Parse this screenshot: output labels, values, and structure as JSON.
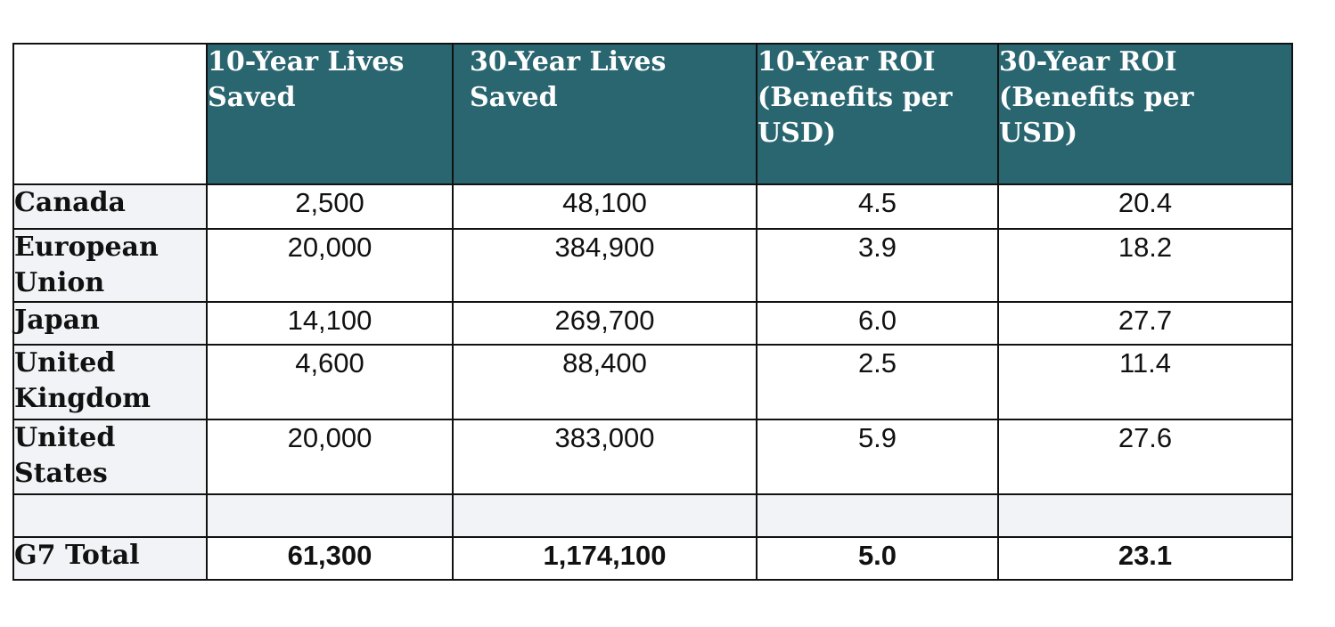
{
  "headers": [
    "10-Year Lives Saved",
    "30-Year Lives Saved",
    "10-Year ROI (Benefits per USD)",
    "30-Year ROI (Benefits per USD)"
  ],
  "rows": [
    {
      "label": "Canada",
      "values": [
        "2,500",
        "48,100",
        "4.5",
        "20.4"
      ]
    },
    {
      "label": "European Union",
      "values": [
        "20,000",
        "384,900",
        "3.9",
        "18.2"
      ]
    },
    {
      "label": "Japan",
      "values": [
        "14,100",
        "269,700",
        "6.0",
        "27.7"
      ]
    },
    {
      "label": "United Kingdom",
      "values": [
        "4,600",
        "88,400",
        "2.5",
        "11.4"
      ]
    },
    {
      "label": "United States",
      "values": [
        "20,000",
        "383,000",
        "5.9",
        "27.6"
      ]
    }
  ],
  "total": {
    "label": "G7 Total",
    "values": [
      "61,300",
      "1,174,100",
      "5.0",
      "23.1"
    ]
  },
  "colors": {
    "header_bg": "#2a6670",
    "header_text": "#ffffff",
    "label_bg": "#f2f3f6"
  }
}
